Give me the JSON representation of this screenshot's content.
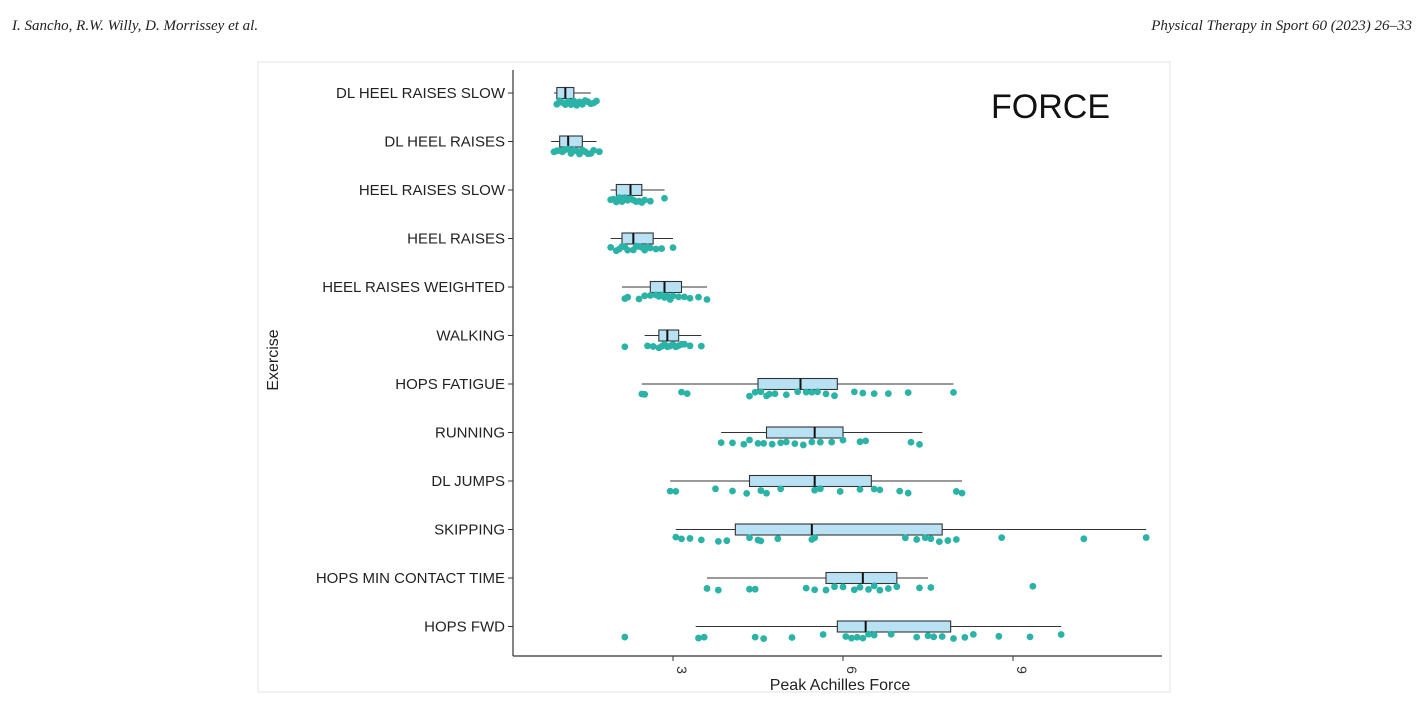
{
  "header": {
    "authors": "I. Sancho, R.W. Willy, D. Morrissey et al.",
    "journal": "Physical Therapy in Sport 60 (2023) 26–33"
  },
  "colors": {
    "box_fill": "#b9e1f4",
    "point": "#2ab3a6",
    "line": "#333333"
  },
  "chart_data": {
    "type": "boxplot",
    "title": "FORCE",
    "xlabel": "Peak Achilles Force",
    "ylabel": "Exercise",
    "xlim": [
      0.2,
      11.5
    ],
    "xticks": [
      3,
      6,
      9
    ],
    "grid": false,
    "categories": [
      {
        "name": "DL HEEL RAISES SLOW",
        "whisker_low": 0.9,
        "q1": 0.95,
        "median": 1.1,
        "q3": 1.25,
        "whisker_high": 1.55,
        "points": [
          0.95,
          1.0,
          1.05,
          1.1,
          1.15,
          1.2,
          1.25,
          1.3,
          1.35,
          1.4,
          1.45,
          1.5,
          1.55,
          1.6,
          1.65
        ]
      },
      {
        "name": "DL HEEL RAISES",
        "whisker_low": 0.85,
        "q1": 1.0,
        "median": 1.15,
        "q3": 1.4,
        "whisker_high": 1.65,
        "points": [
          0.9,
          0.95,
          1.0,
          1.05,
          1.1,
          1.15,
          1.2,
          1.25,
          1.3,
          1.35,
          1.4,
          1.45,
          1.5,
          1.55,
          1.6,
          1.7
        ]
      },
      {
        "name": "HEEL RAISES SLOW",
        "whisker_low": 1.9,
        "q1": 2.0,
        "median": 2.25,
        "q3": 2.45,
        "whisker_high": 2.85,
        "points": [
          1.9,
          1.95,
          2.0,
          2.05,
          2.1,
          2.15,
          2.2,
          2.25,
          2.3,
          2.35,
          2.4,
          2.45,
          2.5,
          2.6,
          2.85
        ]
      },
      {
        "name": "HEEL RAISES",
        "whisker_low": 1.9,
        "q1": 2.1,
        "median": 2.3,
        "q3": 2.65,
        "whisker_high": 3.0,
        "points": [
          1.9,
          2.0,
          2.05,
          2.1,
          2.15,
          2.2,
          2.3,
          2.35,
          2.4,
          2.45,
          2.5,
          2.55,
          2.6,
          2.7,
          2.8,
          3.0
        ]
      },
      {
        "name": "HEEL RAISES WEIGHTED",
        "whisker_low": 2.1,
        "q1": 2.6,
        "median": 2.85,
        "q3": 3.15,
        "whisker_high": 3.6,
        "points": [
          2.15,
          2.2,
          2.4,
          2.5,
          2.6,
          2.7,
          2.75,
          2.8,
          2.85,
          2.9,
          2.95,
          3.0,
          3.1,
          3.2,
          3.3,
          3.45,
          3.6
        ]
      },
      {
        "name": "WALKING",
        "whisker_low": 2.5,
        "q1": 2.75,
        "median": 2.9,
        "q3": 3.1,
        "whisker_high": 3.5,
        "points": [
          2.15,
          2.55,
          2.65,
          2.75,
          2.8,
          2.85,
          2.9,
          2.95,
          3.0,
          3.05,
          3.1,
          3.15,
          3.2,
          3.3,
          3.5
        ]
      },
      {
        "name": "HOPS FATIGUE",
        "whisker_low": 2.45,
        "q1": 4.5,
        "median": 5.25,
        "q3": 5.9,
        "whisker_high": 7.95,
        "points": [
          2.45,
          2.5,
          3.15,
          3.25,
          4.35,
          4.45,
          4.55,
          4.65,
          4.7,
          4.8,
          5.0,
          5.2,
          5.35,
          5.45,
          5.55,
          5.7,
          5.85,
          6.2,
          6.35,
          6.55,
          6.8,
          7.15,
          7.95
        ]
      },
      {
        "name": "RUNNING",
        "whisker_low": 3.85,
        "q1": 4.65,
        "median": 5.5,
        "q3": 6.0,
        "whisker_high": 7.4,
        "points": [
          3.85,
          4.05,
          4.25,
          4.35,
          4.5,
          4.6,
          4.75,
          4.9,
          5.0,
          5.15,
          5.3,
          5.45,
          5.6,
          5.8,
          6.0,
          6.3,
          6.4,
          7.2,
          7.35
        ]
      },
      {
        "name": "DL JUMPS",
        "whisker_low": 2.95,
        "q1": 4.35,
        "median": 5.5,
        "q3": 6.5,
        "whisker_high": 8.1,
        "points": [
          2.95,
          3.05,
          3.75,
          4.05,
          4.3,
          4.55,
          4.65,
          4.9,
          5.5,
          5.6,
          5.95,
          6.3,
          6.55,
          6.65,
          7.0,
          7.15,
          8.0,
          8.1
        ]
      },
      {
        "name": "SKIPPING",
        "whisker_low": 3.05,
        "q1": 4.1,
        "median": 5.45,
        "q3": 7.75,
        "whisker_high": 11.35,
        "points": [
          3.05,
          3.15,
          3.3,
          3.5,
          3.8,
          3.95,
          4.35,
          4.5,
          4.55,
          4.85,
          5.45,
          5.5,
          7.1,
          7.3,
          7.45,
          7.55,
          7.7,
          7.85,
          8.0,
          8.8,
          10.25,
          11.35
        ]
      },
      {
        "name": "HOPS MIN CONTACT TIME",
        "whisker_low": 3.6,
        "q1": 5.7,
        "median": 6.35,
        "q3": 6.95,
        "whisker_high": 7.5,
        "points": [
          3.6,
          3.8,
          4.35,
          4.45,
          5.35,
          5.5,
          5.7,
          5.85,
          6.0,
          6.2,
          6.3,
          6.45,
          6.55,
          6.65,
          6.8,
          6.95,
          7.35,
          7.55,
          9.35
        ]
      },
      {
        "name": "HOPS FWD",
        "whisker_low": 3.4,
        "q1": 5.9,
        "median": 6.4,
        "q3": 7.9,
        "whisker_high": 9.85,
        "points": [
          2.15,
          3.45,
          3.55,
          4.45,
          4.6,
          5.1,
          5.65,
          6.05,
          6.15,
          6.25,
          6.35,
          6.45,
          6.55,
          6.85,
          7.3,
          7.5,
          7.6,
          7.75,
          7.95,
          8.15,
          8.3,
          8.75,
          9.3,
          9.85
        ]
      }
    ]
  }
}
